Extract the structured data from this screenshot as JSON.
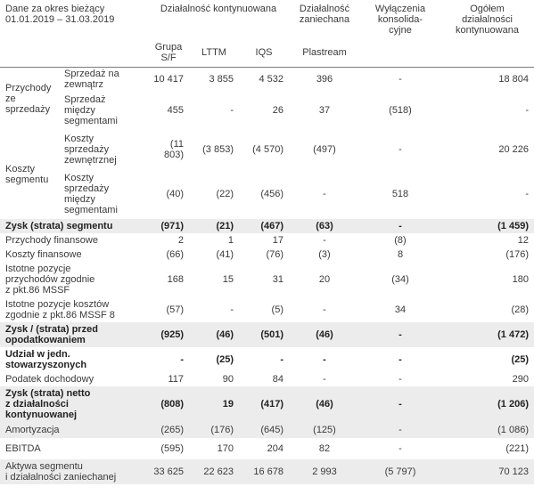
{
  "header": {
    "period_line1": "Dane za okres bieżący",
    "period_line2": "01.01.2019 – 31.03.2019",
    "continuing": "Działalność kontynuowana",
    "discontinued_line1": "Działalność",
    "discontinued_line2": "zaniechana",
    "eliminations_line1": "Wyłączenia",
    "eliminations_line2": "konsolida-",
    "eliminations_line3": "cyjne",
    "total_line1": "Ogółem",
    "total_line2": "działalności",
    "total_line3": "kontynuowana",
    "col_grupa_line1": "Grupa",
    "col_grupa_line2": "S/F",
    "col_lttm": "LTTM",
    "col_iqs": "IQS",
    "col_plastream": "Plastream"
  },
  "groups": {
    "revenue_line1": "Przychody",
    "revenue_line2": "ze",
    "revenue_line3": "sprzedaży",
    "costs_line1": "Koszty",
    "costs_line2": "segmentu"
  },
  "rows": [
    {
      "label": [
        "Sprzedaż na",
        "zewnątrz"
      ],
      "grupa": "10 417",
      "lttm": "3 855",
      "iqs": "4 532",
      "plastream": "396",
      "elim": "-",
      "total": "18 804"
    },
    {
      "label": [
        "Sprzedaż",
        "między",
        "segmentami"
      ],
      "grupa": "455",
      "lttm": "-",
      "iqs": "26",
      "plastream": "37",
      "elim": "(518)",
      "total": "-"
    },
    {
      "label": [
        "Koszty",
        "sprzedaży",
        "zewnętrznej"
      ],
      "grupa": "(11 803)",
      "lttm": "(3 853)",
      "iqs": "(4 570)",
      "plastream": "(497)",
      "elim": "-",
      "total": "20 226"
    },
    {
      "label": [
        "Koszty",
        "sprzedaży",
        "między",
        "segmentami"
      ],
      "grupa": "(40)",
      "lttm": "(22)",
      "iqs": "(456)",
      "plastream": "-",
      "elim": "518",
      "total": "-"
    },
    {
      "label": [
        "Zysk (strata) segmentu"
      ],
      "grupa": "(971)",
      "lttm": "(21)",
      "iqs": "(467)",
      "plastream": "(63)",
      "elim": "-",
      "total": "(1 459)"
    },
    {
      "label": [
        "Przychody finansowe"
      ],
      "grupa": "2",
      "lttm": "1",
      "iqs": "17",
      "plastream": "-",
      "elim": "(8)",
      "total": "12"
    },
    {
      "label": [
        "Koszty finansowe"
      ],
      "grupa": "(66)",
      "lttm": "(41)",
      "iqs": "(76)",
      "plastream": "(3)",
      "elim": "8",
      "total": "(176)"
    },
    {
      "label": [
        "Istotne pozycje",
        "przychodów zgodnie",
        "z pkt.86 MSSF"
      ],
      "grupa": "168",
      "lttm": "15",
      "iqs": "31",
      "plastream": "20",
      "elim": "(34)",
      "total": "180"
    },
    {
      "label": [
        "Istotne pozycje kosztów",
        "zgodnie z pkt.86 MSSF 8"
      ],
      "grupa": "(57)",
      "lttm": "-",
      "iqs": "(5)",
      "plastream": "-",
      "elim": "34",
      "total": "(28)"
    },
    {
      "label": [
        "Zysk / (strata) przed",
        "opodatkowaniem"
      ],
      "grupa": "(925)",
      "lttm": "(46)",
      "iqs": "(501)",
      "plastream": "(46)",
      "elim": "-",
      "total": "(1 472)"
    },
    {
      "label": [
        "Udział w jedn.",
        "stowarzyszonych"
      ],
      "grupa": "-",
      "lttm": "(25)",
      "iqs": "-",
      "plastream": "-",
      "elim": "-",
      "total": "(25)"
    },
    {
      "label": [
        "Podatek dochodowy"
      ],
      "grupa": "117",
      "lttm": "90",
      "iqs": "84",
      "plastream": "-",
      "elim": "-",
      "total": "290"
    },
    {
      "label": [
        "Zysk (strata) netto",
        "z działalności",
        "kontynuowanej"
      ],
      "grupa": "(808)",
      "lttm": "19",
      "iqs": "(417)",
      "plastream": "(46)",
      "elim": "-",
      "total": "(1 206)"
    },
    {
      "label": [
        "Amortyzacja"
      ],
      "grupa": "(265)",
      "lttm": "(176)",
      "iqs": "(645)",
      "plastream": "(125)",
      "elim": "-",
      "total": "(1 086)"
    },
    {
      "label": [
        "EBITDA"
      ],
      "grupa": "(595)",
      "lttm": "170",
      "iqs": "204",
      "plastream": "82",
      "elim": "-",
      "total": "(221)"
    },
    {
      "label": [
        "Aktywa segmentu",
        "i działalności zaniechanej"
      ],
      "grupa": "33 625",
      "lttm": "22 623",
      "iqs": "16 678",
      "plastream": "2 993",
      "elim": "(5 797)",
      "total": "70 123"
    }
  ],
  "colors": {
    "shade": "#ececec",
    "text": "#3a3a3a",
    "rule": "#7a7a7a"
  }
}
